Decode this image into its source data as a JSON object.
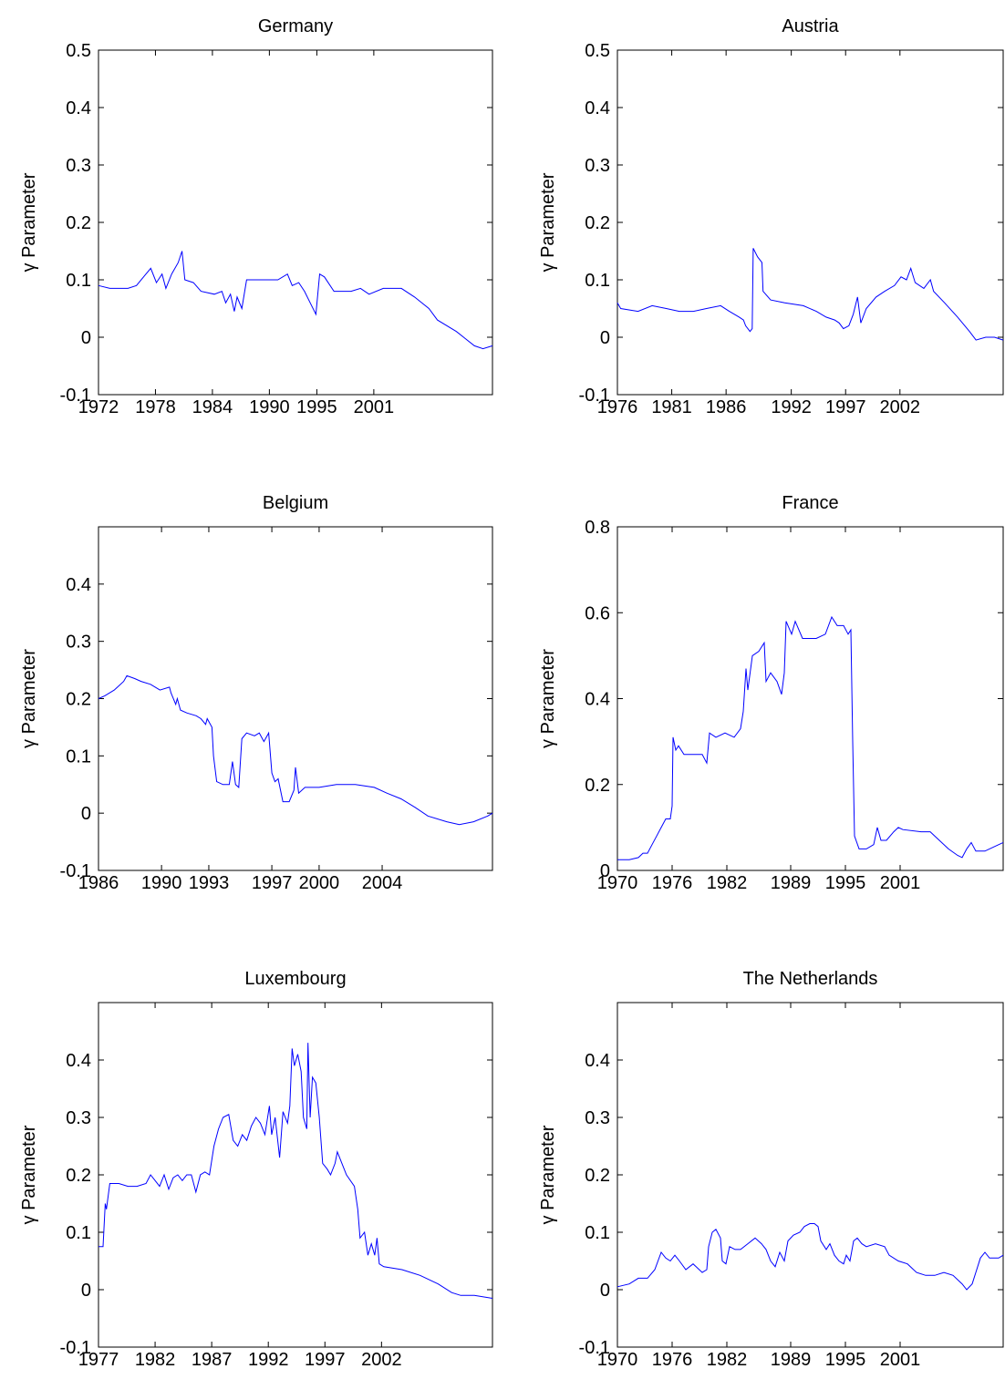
{
  "chart_data": [
    {
      "type": "line",
      "title": "Germany",
      "ylabel": "γ Parameter",
      "color": "#0000ff",
      "x": [
        1972.0,
        1973.2,
        1975.1,
        1976.0,
        1977.0,
        1977.5,
        1978.1,
        1978.7,
        1979.1,
        1979.7,
        1980.4,
        1980.8,
        1981.1,
        1982.0,
        1982.8,
        1984.2,
        1985.0,
        1985.4,
        1985.9,
        1986.3,
        1986.6,
        1987.1,
        1987.6,
        1989.0,
        1990.9,
        1991.9,
        1992.4,
        1993.1,
        1993.7,
        1994.3,
        1994.9,
        1995.3,
        1995.8,
        1996.8,
        1998.6,
        1999.6,
        2000.5,
        2002.0,
        2003.9,
        2005.3,
        2006.8,
        2007.7,
        2009.7,
        2011.6,
        2012.5,
        2013.5
      ],
      "values": [
        0.09,
        0.085,
        0.085,
        0.09,
        0.11,
        0.12,
        0.095,
        0.11,
        0.085,
        0.11,
        0.13,
        0.15,
        0.1,
        0.095,
        0.08,
        0.075,
        0.08,
        0.06,
        0.075,
        0.045,
        0.07,
        0.05,
        0.1,
        0.1,
        0.1,
        0.11,
        0.09,
        0.095,
        0.08,
        0.06,
        0.04,
        0.11,
        0.105,
        0.08,
        0.08,
        0.085,
        0.075,
        0.085,
        0.085,
        0.07,
        0.05,
        0.03,
        0.01,
        -0.015,
        -0.02,
        -0.015
      ],
      "xlim": [
        1972,
        2013.5
      ],
      "xticks": [
        1972,
        1978,
        1984,
        1990,
        1995,
        2001
      ],
      "ylim": [
        -0.1,
        0.5
      ],
      "yticks": [
        -0.1,
        0,
        0.1,
        0.2,
        0.3,
        0.4,
        0.5
      ]
    },
    {
      "type": "line",
      "title": "Austria",
      "ylabel": "γ Parameter",
      "color": "#0000ff",
      "x": [
        1976.0,
        1976.3,
        1977.9,
        1979.2,
        1980.5,
        1981.7,
        1983.0,
        1984.2,
        1985.5,
        1986.3,
        1987.2,
        1987.6,
        1987.8,
        1988.2,
        1988.4,
        1988.5,
        1988.9,
        1989.3,
        1989.4,
        1990.1,
        1991.4,
        1993.1,
        1994.3,
        1995.2,
        1996.0,
        1996.4,
        1996.8,
        1997.3,
        1997.7,
        1998.1,
        1998.4,
        1998.9,
        1999.8,
        2000.6,
        2001.5,
        2002.1,
        2002.6,
        2003.0,
        2003.4,
        2004.2,
        2004.8,
        2005.1,
        2006.1,
        2007.3,
        2008.4,
        2009.0,
        2009.9,
        2010.7,
        2011.5
      ],
      "values": [
        0.06,
        0.05,
        0.045,
        0.055,
        0.05,
        0.045,
        0.045,
        0.05,
        0.055,
        0.045,
        0.035,
        0.03,
        0.02,
        0.01,
        0.015,
        0.155,
        0.14,
        0.13,
        0.08,
        0.065,
        0.06,
        0.055,
        0.045,
        0.035,
        0.03,
        0.025,
        0.015,
        0.02,
        0.04,
        0.07,
        0.025,
        0.05,
        0.07,
        0.08,
        0.09,
        0.105,
        0.1,
        0.12,
        0.095,
        0.085,
        0.1,
        0.08,
        0.06,
        0.035,
        0.01,
        -0.005,
        0.0,
        0.0,
        -0.005
      ],
      "xlim": [
        1976,
        2011.5
      ],
      "xticks": [
        1976,
        1981,
        1986,
        1992,
        1997,
        2002
      ],
      "ylim": [
        -0.1,
        0.5
      ],
      "yticks": [
        -0.1,
        0,
        0.1,
        0.2,
        0.3,
        0.4,
        0.5
      ]
    },
    {
      "type": "line",
      "title": "Belgium",
      "ylabel": "γ Parameter",
      "color": "#0000ff",
      "x": [
        1986.0,
        1986.4,
        1987.0,
        1987.6,
        1987.8,
        1988.3,
        1988.7,
        1989.3,
        1989.9,
        1990.5,
        1990.6,
        1990.9,
        1991.0,
        1991.2,
        1991.6,
        1992.2,
        1992.5,
        1992.8,
        1992.9,
        1993.2,
        1993.3,
        1993.5,
        1993.9,
        1994.3,
        1994.5,
        1994.7,
        1994.9,
        1995.1,
        1995.4,
        1995.9,
        1996.2,
        1996.5,
        1996.8,
        1997.0,
        1997.2,
        1997.4,
        1997.7,
        1998.1,
        1998.4,
        1998.5,
        1998.7,
        1999.1,
        2000.0,
        2001.1,
        2002.3,
        2003.5,
        2004.3,
        2005.2,
        2006.1,
        2006.9,
        2008.1,
        2008.9,
        2009.8,
        2010.7,
        2011.0
      ],
      "values": [
        0.2,
        0.205,
        0.215,
        0.23,
        0.24,
        0.235,
        0.23,
        0.225,
        0.215,
        0.22,
        0.21,
        0.19,
        0.2,
        0.18,
        0.175,
        0.17,
        0.165,
        0.155,
        0.165,
        0.15,
        0.1,
        0.055,
        0.05,
        0.05,
        0.09,
        0.05,
        0.045,
        0.13,
        0.14,
        0.135,
        0.14,
        0.125,
        0.14,
        0.07,
        0.055,
        0.06,
        0.02,
        0.02,
        0.04,
        0.08,
        0.035,
        0.045,
        0.045,
        0.05,
        0.05,
        0.045,
        0.035,
        0.025,
        0.01,
        -0.005,
        -0.015,
        -0.02,
        -0.015,
        -0.005,
        0.0
      ],
      "xlim": [
        1986,
        2011
      ],
      "xticks": [
        1986,
        1990,
        1993,
        1997,
        2000,
        2004
      ],
      "ylim": [
        -0.1,
        0.5
      ],
      "yticks": [
        -0.1,
        0,
        0.1,
        0.2,
        0.3,
        0.4
      ]
    },
    {
      "type": "line",
      "title": "France",
      "ylabel": "γ Parameter",
      "color": "#0000ff",
      "x": [
        1970.0,
        1971.3,
        1972.3,
        1972.8,
        1973.3,
        1973.8,
        1974.3,
        1974.8,
        1975.3,
        1975.8,
        1976.0,
        1976.1,
        1976.4,
        1976.7,
        1977.3,
        1978.3,
        1979.3,
        1979.8,
        1980.1,
        1980.8,
        1981.8,
        1982.8,
        1983.5,
        1983.8,
        1984.1,
        1984.3,
        1984.8,
        1985.5,
        1986.1,
        1986.3,
        1986.8,
        1987.5,
        1988.0,
        1988.3,
        1988.5,
        1989.1,
        1989.5,
        1990.3,
        1991.8,
        1992.8,
        1993.5,
        1994.1,
        1994.8,
        1995.3,
        1995.6,
        1995.8,
        1996.0,
        1996.5,
        1997.3,
        1998.1,
        1998.5,
        1998.9,
        1999.5,
        2000.3,
        2000.8,
        2001.3,
        2003.3,
        2004.3,
        2005.3,
        2006.3,
        2007.3,
        2007.8,
        2008.3,
        2008.8,
        2009.3,
        2010.3,
        2011.3,
        2012.3
      ],
      "values": [
        0.025,
        0.025,
        0.03,
        0.04,
        0.04,
        0.06,
        0.08,
        0.1,
        0.12,
        0.12,
        0.15,
        0.31,
        0.28,
        0.29,
        0.27,
        0.27,
        0.27,
        0.25,
        0.32,
        0.31,
        0.32,
        0.31,
        0.33,
        0.37,
        0.47,
        0.42,
        0.5,
        0.51,
        0.53,
        0.44,
        0.46,
        0.44,
        0.41,
        0.46,
        0.58,
        0.55,
        0.58,
        0.54,
        0.54,
        0.55,
        0.59,
        0.57,
        0.57,
        0.55,
        0.56,
        0.3,
        0.08,
        0.05,
        0.05,
        0.06,
        0.1,
        0.07,
        0.07,
        0.09,
        0.1,
        0.095,
        0.09,
        0.09,
        0.07,
        0.05,
        0.035,
        0.03,
        0.05,
        0.065,
        0.045,
        0.045,
        0.055,
        0.065
      ],
      "xlim": [
        1970,
        2012.3
      ],
      "xticks": [
        1970,
        1976,
        1982,
        1989,
        1995,
        2001
      ],
      "ylim": [
        0,
        0.8
      ],
      "yticks": [
        0,
        0.2,
        0.4,
        0.6,
        0.8
      ]
    },
    {
      "type": "line",
      "title": "Luxembourg",
      "ylabel": "γ Parameter",
      "color": "#0000ff",
      "x": [
        1977.0,
        1977.4,
        1977.6,
        1977.7,
        1978.0,
        1978.8,
        1979.6,
        1980.4,
        1981.2,
        1981.6,
        1982.0,
        1982.4,
        1982.8,
        1983.2,
        1983.6,
        1984.0,
        1984.4,
        1984.8,
        1985.2,
        1985.6,
        1986.0,
        1986.4,
        1986.8,
        1987.2,
        1987.6,
        1988.0,
        1988.5,
        1988.9,
        1989.3,
        1989.7,
        1990.1,
        1990.5,
        1990.9,
        1991.3,
        1991.7,
        1992.1,
        1992.3,
        1992.6,
        1993.0,
        1993.3,
        1993.7,
        1993.9,
        1994.1,
        1994.3,
        1994.6,
        1994.9,
        1995.1,
        1995.4,
        1995.5,
        1995.7,
        1995.9,
        1996.2,
        1996.5,
        1996.8,
        1997.2,
        1997.5,
        1997.9,
        1998.1,
        1998.5,
        1998.9,
        1999.6,
        1999.9,
        2000.1,
        2000.5,
        2000.8,
        2001.1,
        2001.4,
        2001.6,
        2001.8,
        2002.2,
        2003.8,
        2005.4,
        2007.0,
        2008.2,
        2009.0,
        2010.2,
        2011.8
      ],
      "values": [
        0.075,
        0.075,
        0.15,
        0.14,
        0.185,
        0.185,
        0.18,
        0.18,
        0.185,
        0.2,
        0.19,
        0.18,
        0.2,
        0.175,
        0.195,
        0.2,
        0.19,
        0.2,
        0.2,
        0.17,
        0.2,
        0.205,
        0.2,
        0.25,
        0.28,
        0.3,
        0.305,
        0.26,
        0.25,
        0.27,
        0.26,
        0.285,
        0.3,
        0.29,
        0.27,
        0.32,
        0.27,
        0.3,
        0.23,
        0.31,
        0.29,
        0.32,
        0.42,
        0.39,
        0.41,
        0.38,
        0.3,
        0.28,
        0.43,
        0.3,
        0.37,
        0.36,
        0.3,
        0.22,
        0.21,
        0.2,
        0.22,
        0.24,
        0.22,
        0.2,
        0.18,
        0.14,
        0.09,
        0.1,
        0.06,
        0.08,
        0.06,
        0.09,
        0.045,
        0.04,
        0.035,
        0.025,
        0.01,
        -0.005,
        -0.01,
        -0.01,
        -0.015
      ],
      "xlim": [
        1977,
        2011.8
      ],
      "xticks": [
        1977,
        1982,
        1987,
        1992,
        1997,
        2002
      ],
      "ylim": [
        -0.1,
        0.5
      ],
      "yticks": [
        -0.1,
        0,
        0.1,
        0.2,
        0.3,
        0.4
      ]
    },
    {
      "type": "line",
      "title": "The Netherlands",
      "ylabel": "γ Parameter",
      "color": "#0000ff",
      "x": [
        1970.0,
        1971.3,
        1972.3,
        1973.3,
        1974.1,
        1974.8,
        1975.3,
        1975.8,
        1976.3,
        1976.8,
        1977.5,
        1978.3,
        1979.3,
        1979.8,
        1980.0,
        1980.4,
        1980.8,
        1981.3,
        1981.5,
        1981.9,
        1982.3,
        1982.9,
        1983.5,
        1984.3,
        1985.1,
        1985.8,
        1986.3,
        1986.8,
        1987.3,
        1987.8,
        1988.3,
        1988.7,
        1989.3,
        1990.0,
        1990.5,
        1991.1,
        1991.6,
        1992.0,
        1992.3,
        1992.9,
        1993.3,
        1993.8,
        1994.3,
        1994.8,
        1995.1,
        1995.5,
        1995.9,
        1996.3,
        1996.8,
        1997.3,
        1998.3,
        1999.3,
        1999.8,
        2000.8,
        2001.8,
        2002.8,
        2003.8,
        2004.8,
        2005.8,
        2006.8,
        2007.8,
        2008.3,
        2008.9,
        2009.3,
        2009.8,
        2010.3,
        2010.8,
        2011.8,
        2012.3
      ],
      "values": [
        0.005,
        0.01,
        0.02,
        0.02,
        0.035,
        0.065,
        0.055,
        0.05,
        0.06,
        0.05,
        0.035,
        0.045,
        0.03,
        0.035,
        0.075,
        0.1,
        0.105,
        0.09,
        0.05,
        0.045,
        0.075,
        0.07,
        0.07,
        0.08,
        0.09,
        0.08,
        0.07,
        0.05,
        0.04,
        0.065,
        0.05,
        0.085,
        0.095,
        0.1,
        0.11,
        0.115,
        0.115,
        0.11,
        0.085,
        0.07,
        0.08,
        0.06,
        0.05,
        0.045,
        0.06,
        0.05,
        0.085,
        0.09,
        0.08,
        0.075,
        0.08,
        0.075,
        0.06,
        0.05,
        0.045,
        0.03,
        0.025,
        0.025,
        0.03,
        0.025,
        0.01,
        0.0,
        0.01,
        0.03,
        0.055,
        0.065,
        0.055,
        0.055,
        0.06
      ],
      "xlim": [
        1970,
        2012.3
      ],
      "xticks": [
        1970,
        1976,
        1982,
        1989,
        1995,
        2001
      ],
      "ylim": [
        -0.1,
        0.5
      ],
      "yticks": [
        -0.1,
        0,
        0.1,
        0.2,
        0.3,
        0.4
      ]
    }
  ]
}
